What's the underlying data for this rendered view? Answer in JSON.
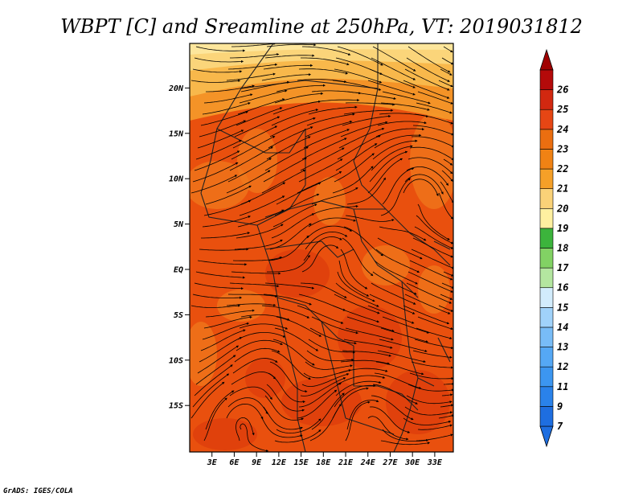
{
  "title": "WBPT [C] and Sreamline at 250hPa, VT: 2019031812",
  "footer": "GrADS: IGES/COLA",
  "map": {
    "lat_labels": [
      "20N",
      "15N",
      "10N",
      "5N",
      "EQ",
      "5S",
      "10S",
      "15S"
    ],
    "lon_labels": [
      "3E",
      "6E",
      "9E",
      "12E",
      "15E",
      "18E",
      "21E",
      "24E",
      "27E",
      "30E",
      "33E"
    ]
  },
  "colorbar": {
    "labels": [
      "7",
      "9",
      "11",
      "12",
      "13",
      "14",
      "15",
      "16",
      "17",
      "18",
      "19",
      "20",
      "21",
      "22",
      "23",
      "24",
      "25",
      "26"
    ],
    "colors": [
      "#1e6ee0",
      "#2a82ea",
      "#3c96f0",
      "#55a8f5",
      "#78bcf7",
      "#a0d2fa",
      "#d2ecfc",
      "#b4e6a0",
      "#82d264",
      "#3cb43c",
      "#fff0a0",
      "#fad278",
      "#f5a028",
      "#f08214",
      "#eb6e10",
      "#e64614",
      "#d22810",
      "#b40a0a"
    ],
    "arrow_bottom_color": "#1e6ee0",
    "arrow_top_color": "#a00000"
  },
  "field_colors": {
    "main": "#e9500e",
    "light": "#f07a1c",
    "dark": "#dc3a0c",
    "north_1": "#f59a2a",
    "north_2": "#f8bc50",
    "north_3": "#fbd880",
    "north_4": "#fde8a0"
  }
}
